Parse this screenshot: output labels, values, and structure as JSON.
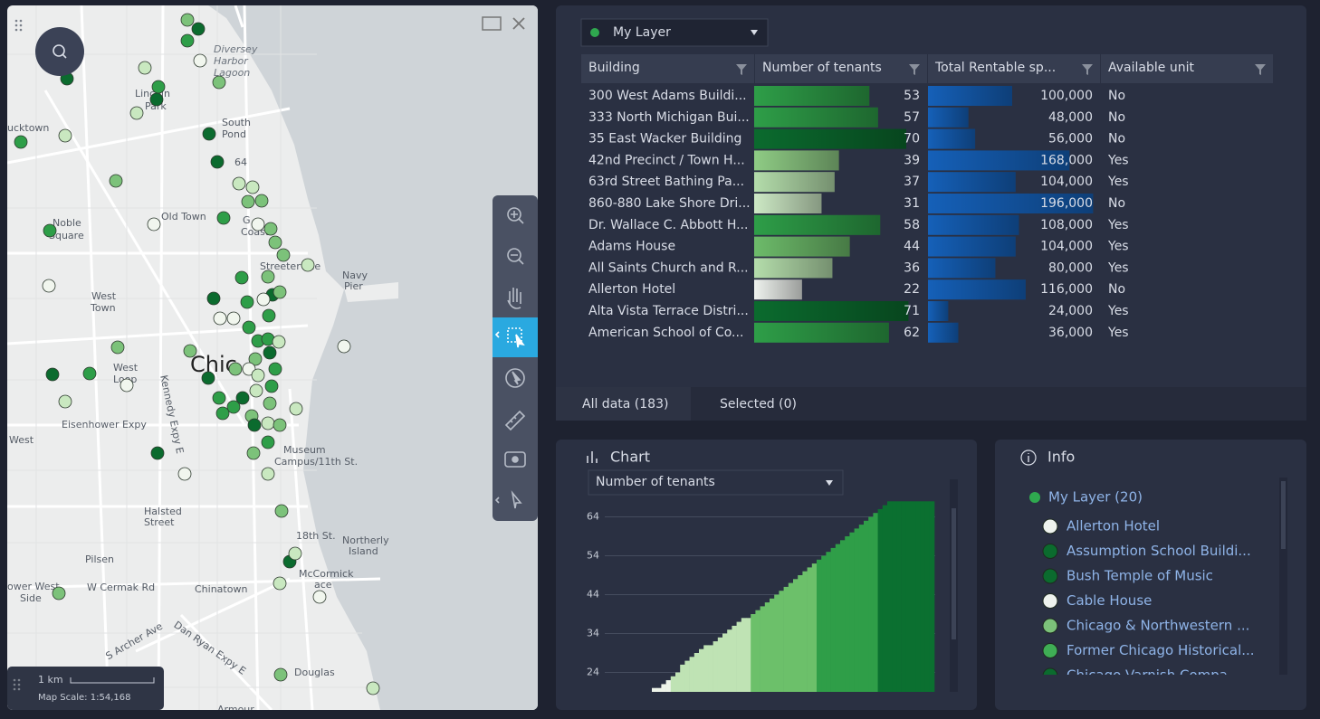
{
  "map": {
    "labels": [
      "Diversey",
      "Harbor",
      "Lagoon",
      "Lincoln",
      "Park",
      "ucktown",
      "South",
      "Pond",
      "64",
      "Noble",
      "Square",
      "Old Town",
      "G",
      "Coast",
      "Streeterville",
      "Navy",
      "Pier",
      "West",
      "Town",
      "Kennedy Expy E",
      "West",
      "Loop",
      "Chic",
      "Eisenhower Expy",
      "West",
      "Museum",
      "Campus/11th St.",
      "Halsted",
      "Street",
      "18th St.",
      "Northerly",
      "Island",
      "Pilsen",
      "ower West",
      "Side",
      "W Cermak Rd",
      "Chinatown",
      "McCormick",
      "ace",
      "Dan Ryan Expy E",
      "S Archer Ave",
      "Douglas",
      "Armour"
    ],
    "scale": {
      "distance": "1 km",
      "ratio": "Map Scale: 1:54,168"
    }
  },
  "table": {
    "layer": "My Layer",
    "columns": [
      "Building",
      "Number of tenants",
      "Total Rentable sp...",
      "Available unit"
    ],
    "rows": [
      {
        "building": "300 West Adams Buildi...",
        "tenants": 53,
        "rentable": 100000,
        "rentable_label": "100,000",
        "available": "No",
        "color": "#2e9e48"
      },
      {
        "building": "333 North Michigan Bui...",
        "tenants": 57,
        "rentable": 48000,
        "rentable_label": "48,000",
        "available": "No",
        "color": "#2e9e48"
      },
      {
        "building": "35 East Wacker Building",
        "tenants": 70,
        "rentable": 56000,
        "rentable_label": "56,000",
        "available": "No",
        "color": "#0b6b2e"
      },
      {
        "building": "42nd Precinct / Town H...",
        "tenants": 39,
        "rentable": 168000,
        "rentable_label": "168,000",
        "available": "Yes",
        "color": "#8fcc85"
      },
      {
        "building": "63rd Street Bathing Pa...",
        "tenants": 37,
        "rentable": 104000,
        "rentable_label": "104,000",
        "available": "Yes",
        "color": "#b4ddab"
      },
      {
        "building": "860-880 Lake Shore Dri...",
        "tenants": 31,
        "rentable": 196000,
        "rentable_label": "196,000",
        "available": "No",
        "color": "#cde9c5"
      },
      {
        "building": "Dr. Wallace C. Abbott H...",
        "tenants": 58,
        "rentable": 108000,
        "rentable_label": "108,000",
        "available": "Yes",
        "color": "#2e9e48"
      },
      {
        "building": "Adams House",
        "tenants": 44,
        "rentable": 104000,
        "rentable_label": "104,000",
        "available": "Yes",
        "color": "#6dbb6a"
      },
      {
        "building": "All Saints Church and R...",
        "tenants": 36,
        "rentable": 80000,
        "rentable_label": "80,000",
        "available": "Yes",
        "color": "#b4ddab"
      },
      {
        "building": "Allerton Hotel",
        "tenants": 22,
        "rentable": 116000,
        "rentable_label": "116,000",
        "available": "No",
        "color": "#eef2ee"
      },
      {
        "building": "Alta Vista Terrace Distri...",
        "tenants": 71,
        "rentable": 24000,
        "rentable_label": "24,000",
        "available": "Yes",
        "color": "#0b6b2e"
      },
      {
        "building": "American School of Co...",
        "tenants": 62,
        "rentable": 36000,
        "rentable_label": "36,000",
        "available": "Yes",
        "color": "#2e9e48"
      }
    ],
    "tabs": [
      "All data (183)",
      "Selected (0)"
    ]
  },
  "chart_data": {
    "type": "bar",
    "title": "Chart",
    "field": "Number of tenants",
    "ylim": [
      19,
      70
    ],
    "yticks": [
      24,
      34,
      44,
      54,
      64
    ],
    "grid": true,
    "series": [
      {
        "color": "#eef4ea",
        "values": [
          20,
          20,
          21,
          22
        ]
      },
      {
        "color": "#bfe3b4",
        "values": [
          23,
          24,
          26,
          27,
          28,
          29,
          30,
          31,
          31,
          32,
          33,
          34,
          35,
          36,
          37,
          38,
          38
        ]
      },
      {
        "color": "#6cc06a",
        "values": [
          39,
          40,
          41,
          42,
          43,
          44,
          45,
          46,
          47,
          48,
          49,
          50,
          51,
          52
        ]
      },
      {
        "color": "#2f9e48",
        "values": [
          53,
          54,
          55,
          56,
          57,
          58,
          59,
          60,
          61,
          62,
          63,
          64,
          65
        ]
      },
      {
        "color": "#0b7030",
        "values": [
          66,
          67,
          68,
          68,
          68,
          68,
          68,
          68,
          68,
          68,
          68,
          68
        ]
      }
    ]
  },
  "info": {
    "title": "Info",
    "layer": "My Layer (20)",
    "items": [
      {
        "name": "Allerton Hotel",
        "color": "#eef2ee"
      },
      {
        "name": "Assumption School Buildi...",
        "color": "#0b6b2e"
      },
      {
        "name": "Bush Temple of Music",
        "color": "#0b6b2e"
      },
      {
        "name": "Cable House",
        "color": "#eef2ee"
      },
      {
        "name": "Chicago & Northwestern ...",
        "color": "#7cc27a"
      },
      {
        "name": "Former Chicago Historical...",
        "color": "#3fae55"
      },
      {
        "name": "Chicago Varnish Compa...",
        "color": "#0b6b2e"
      }
    ]
  }
}
